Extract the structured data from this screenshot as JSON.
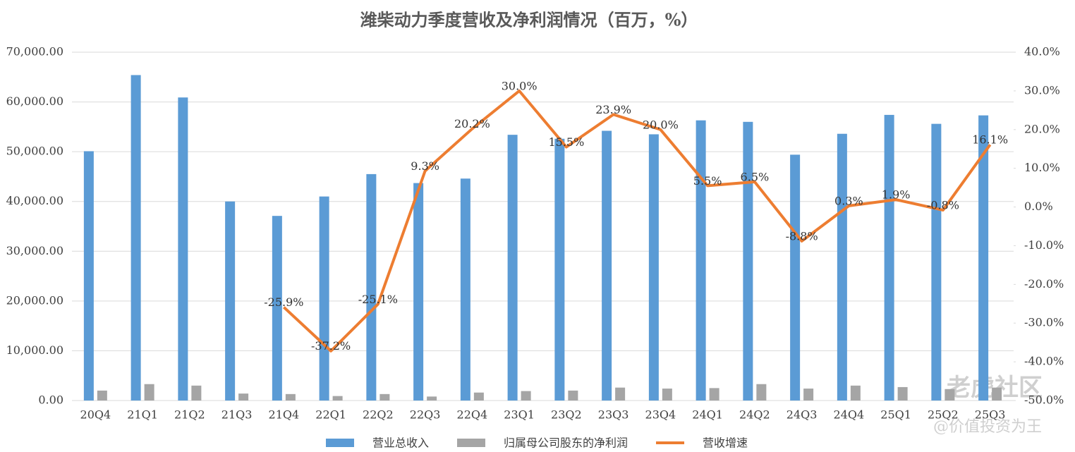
{
  "chart_data": {
    "type": "bar-line",
    "title": "潍柴动力季度营收及净利润情况（百万，%）",
    "categories": [
      "20Q4",
      "21Q1",
      "21Q2",
      "21Q3",
      "21Q4",
      "22Q1",
      "22Q2",
      "22Q3",
      "22Q4",
      "23Q1",
      "23Q2",
      "23Q3",
      "23Q4",
      "24Q1",
      "24Q2",
      "24Q3",
      "24Q4",
      "25Q1",
      "25Q2",
      "25Q3"
    ],
    "series": [
      {
        "name": "营业总收入",
        "type": "bar",
        "color": "#5b9bd5",
        "values": [
          50100,
          65400,
          60900,
          40000,
          37100,
          41000,
          45500,
          43700,
          44600,
          53400,
          52600,
          54200,
          53500,
          56300,
          56000,
          49400,
          53600,
          57400,
          55600,
          57300
        ]
      },
      {
        "name": "归属母公司股东的净利润",
        "type": "bar",
        "color": "#a5a5a5",
        "values": [
          2000,
          3300,
          3000,
          1400,
          1300,
          900,
          1300,
          800,
          1600,
          1900,
          2000,
          2600,
          2400,
          2500,
          3300,
          2400,
          3000,
          2700,
          2300,
          2600
        ]
      },
      {
        "name": "营收增速",
        "type": "line",
        "axis": "y2",
        "color": "#ed7d31",
        "values": [
          null,
          null,
          null,
          null,
          -25.9,
          -37.2,
          -25.1,
          9.3,
          20.2,
          30.0,
          15.5,
          23.9,
          20.0,
          5.5,
          6.5,
          -8.8,
          0.3,
          1.9,
          -0.8,
          16.1
        ],
        "value_labels": [
          null,
          null,
          null,
          null,
          "-25.9%",
          "-37.2%",
          "-25.1%",
          "9.3%",
          "20.2%",
          "30.0%",
          "15.5%",
          "23.9%",
          "20.0%",
          "5.5%",
          "6.5%",
          "-8.8%",
          "0.3%",
          "1.9%",
          "-0.8%",
          "16.1%"
        ]
      }
    ],
    "ylim": [
      0,
      70000
    ],
    "yticks": [
      {
        "value": 0,
        "label": "0.00"
      },
      {
        "value": 10000,
        "label": "10,000.00"
      },
      {
        "value": 20000,
        "label": "20,000.00"
      },
      {
        "value": 30000,
        "label": "30,000.00"
      },
      {
        "value": 40000,
        "label": "40,000.00"
      },
      {
        "value": 50000,
        "label": "50,000.00"
      },
      {
        "value": 60000,
        "label": "60,000.00"
      },
      {
        "value": 70000,
        "label": "70,000.00"
      }
    ],
    "y2lim": [
      -50,
      40
    ],
    "y2ticks": [
      {
        "value": -50,
        "label": "-50.0%"
      },
      {
        "value": -40,
        "label": "-40.0%"
      },
      {
        "value": -30,
        "label": "-30.0%"
      },
      {
        "value": -20,
        "label": "-20.0%"
      },
      {
        "value": -10,
        "label": "-10.0%"
      },
      {
        "value": 0,
        "label": "0.0%"
      },
      {
        "value": 10,
        "label": "10.0%"
      },
      {
        "value": 20,
        "label": "20.0%"
      },
      {
        "value": 30,
        "label": "30.0%"
      },
      {
        "value": 40,
        "label": "40.0%"
      }
    ],
    "grid": true,
    "legend": "bottom"
  },
  "watermark": {
    "logo": "老虎社区",
    "author": "@价值投资为王"
  }
}
